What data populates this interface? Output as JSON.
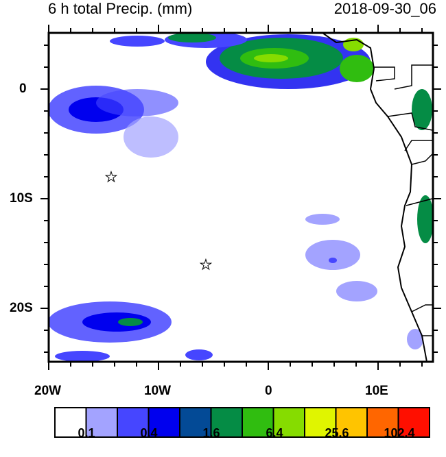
{
  "title_left": "6 h total Precip. (mm)",
  "title_right": "2018-09-30_06",
  "lat_labels": [
    "0",
    "10S",
    "20S"
  ],
  "lon_labels": [
    "20W",
    "10W",
    "0",
    "10E"
  ],
  "colorbar": {
    "colors": [
      "#ffffff",
      "#a3a3ff",
      "#4646ff",
      "#0000ee",
      "#034a96",
      "#058c45",
      "#30bd10",
      "#86dc00",
      "#e0f500",
      "#ffc400",
      "#ff6600",
      "#ff0f00"
    ],
    "labels": [
      "0.1",
      "0.4",
      "1.6",
      "6.4",
      "25.6",
      "102.4"
    ]
  },
  "markers": [
    {
      "name": "star",
      "lon": -14.3,
      "lat": -8.0
    },
    {
      "name": "star",
      "lon": -5.7,
      "lat": -16.0
    }
  ],
  "extent": {
    "lon": [
      -20,
      15
    ],
    "lat": [
      -25,
      5
    ]
  }
}
